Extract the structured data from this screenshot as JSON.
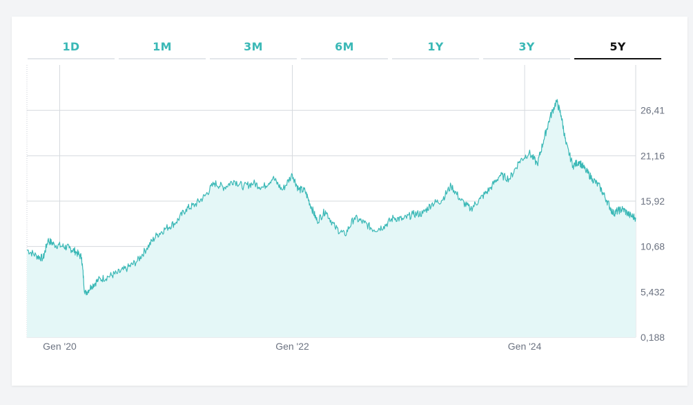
{
  "tabs": [
    {
      "label": "1D",
      "active": false
    },
    {
      "label": "1M",
      "active": false
    },
    {
      "label": "3M",
      "active": false
    },
    {
      "label": "6M",
      "active": false
    },
    {
      "label": "1Y",
      "active": false
    },
    {
      "label": "3Y",
      "active": false
    },
    {
      "label": "5Y",
      "active": true
    }
  ],
  "colors": {
    "line": "#3ab8b6",
    "fill": "#e4f7f7",
    "tab_inactive": "#3ab8b6",
    "tab_active": "#111111"
  },
  "chart_data": {
    "type": "area",
    "title": "",
    "xlabel": "",
    "ylabel": "",
    "y_ticks": [
      "0,188",
      "5,432",
      "10,68",
      "15,92",
      "21,16",
      "26,41"
    ],
    "y_tick_values": [
      0.188,
      5.432,
      10.68,
      15.92,
      21.16,
      26.41
    ],
    "ylim": [
      0.188,
      31.65
    ],
    "x_ticks": [
      {
        "label": "Gen '20",
        "date": "2020-01-01"
      },
      {
        "label": "Gen '22",
        "date": "2022-01-01"
      },
      {
        "label": "Gen '24",
        "date": "2024-01-01"
      }
    ],
    "xlim": [
      "2019-09-20",
      "2024-12-15"
    ],
    "grid": true,
    "legend": "none",
    "series": [
      {
        "x": [
          "2019-09-20",
          "2019-10-20",
          "2019-11-10",
          "2019-11-25",
          "2019-12-15",
          "2020-01-10",
          "2020-01-31",
          "2020-02-20",
          "2020-03-10",
          "2020-03-20",
          "2020-04-10",
          "2020-05-01",
          "2020-06-01",
          "2020-07-01",
          "2020-08-01",
          "2020-09-01",
          "2020-10-01",
          "2020-11-01",
          "2020-12-01",
          "2021-01-01",
          "2021-02-01",
          "2021-03-01",
          "2021-04-01",
          "2021-05-01",
          "2021-06-01",
          "2021-07-01",
          "2021-08-01",
          "2021-09-01",
          "2021-10-01",
          "2021-11-01",
          "2021-12-01",
          "2022-01-01",
          "2022-01-20",
          "2022-02-10",
          "2022-03-01",
          "2022-03-20",
          "2022-04-15",
          "2022-05-15",
          "2022-06-15",
          "2022-07-15",
          "2022-08-15",
          "2022-09-15",
          "2022-10-15",
          "2022-11-15",
          "2022-12-15",
          "2023-01-15",
          "2023-02-15",
          "2023-03-15",
          "2023-04-15",
          "2023-05-15",
          "2023-06-15",
          "2023-07-15",
          "2023-08-15",
          "2023-09-15",
          "2023-10-15",
          "2023-11-15",
          "2023-12-15",
          "2024-01-15",
          "2024-02-10",
          "2024-03-01",
          "2024-03-20",
          "2024-04-10",
          "2024-04-25",
          "2024-05-10",
          "2024-06-01",
          "2024-06-20",
          "2024-07-10",
          "2024-08-01",
          "2024-08-25",
          "2024-09-15",
          "2024-10-05",
          "2024-10-20",
          "2024-11-05",
          "2024-11-25",
          "2024-12-15"
        ],
        "y": [
          10.3,
          9.6,
          9.3,
          11.4,
          10.9,
          10.7,
          10.5,
          10.1,
          9.4,
          5.2,
          6.1,
          6.8,
          7.2,
          7.6,
          8.2,
          9.0,
          10.5,
          12.0,
          12.8,
          13.5,
          15.0,
          15.5,
          16.5,
          18.0,
          17.5,
          18.3,
          17.6,
          18.0,
          17.5,
          18.6,
          17.2,
          19.0,
          17.3,
          17.1,
          15.3,
          13.6,
          14.8,
          12.9,
          12.0,
          14.0,
          13.4,
          12.6,
          13.0,
          14.0,
          13.8,
          14.4,
          14.5,
          15.6,
          16.0,
          17.7,
          16.0,
          15.0,
          16.2,
          17.4,
          18.9,
          18.5,
          20.5,
          21.5,
          20.2,
          23.0,
          25.5,
          27.5,
          25.8,
          22.5,
          20.0,
          20.5,
          19.5,
          18.5,
          17.5,
          16.0,
          14.5,
          14.8,
          15.0,
          14.3,
          14.0
        ]
      }
    ]
  }
}
